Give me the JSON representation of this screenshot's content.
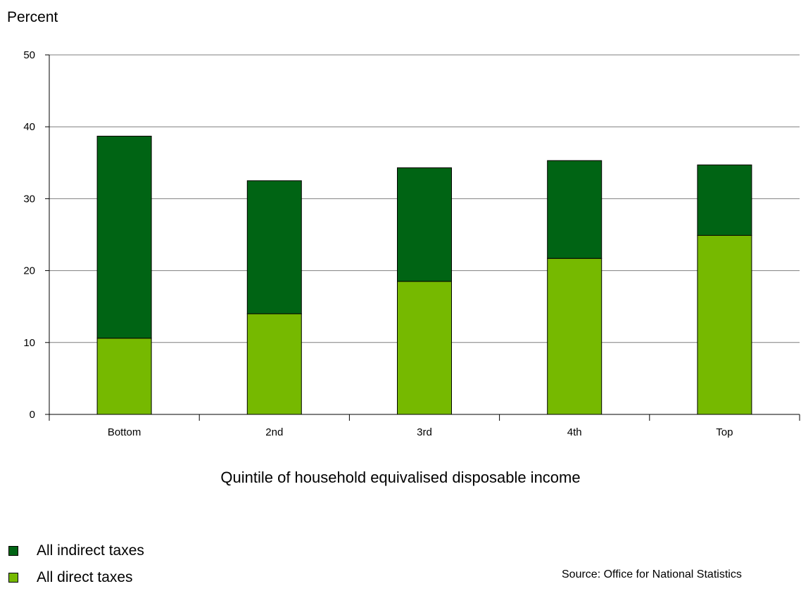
{
  "chart_data": {
    "type": "bar",
    "stacked": true,
    "ylabel": "Percent",
    "xlabel": "Quintile of household equivalised disposable income",
    "categories": [
      "Bottom",
      "2nd",
      "3rd",
      "4th",
      "Top"
    ],
    "series": [
      {
        "name": "All direct taxes",
        "values": [
          10.6,
          14.0,
          18.5,
          21.7,
          24.9
        ],
        "color": "#76b900"
      },
      {
        "name": "All indirect taxes",
        "values": [
          28.1,
          18.5,
          15.8,
          13.6,
          9.8
        ],
        "color": "#006414"
      }
    ],
    "ylim": [
      0,
      50
    ],
    "yticks": [
      0,
      10,
      20,
      30,
      40,
      50
    ],
    "grid": true,
    "legend_position": "bottom-left",
    "source": "Source: Office for National Statistics"
  },
  "legend": [
    {
      "label": "All indirect taxes",
      "color": "#006414"
    },
    {
      "label": "All direct taxes",
      "color": "#76b900"
    }
  ]
}
